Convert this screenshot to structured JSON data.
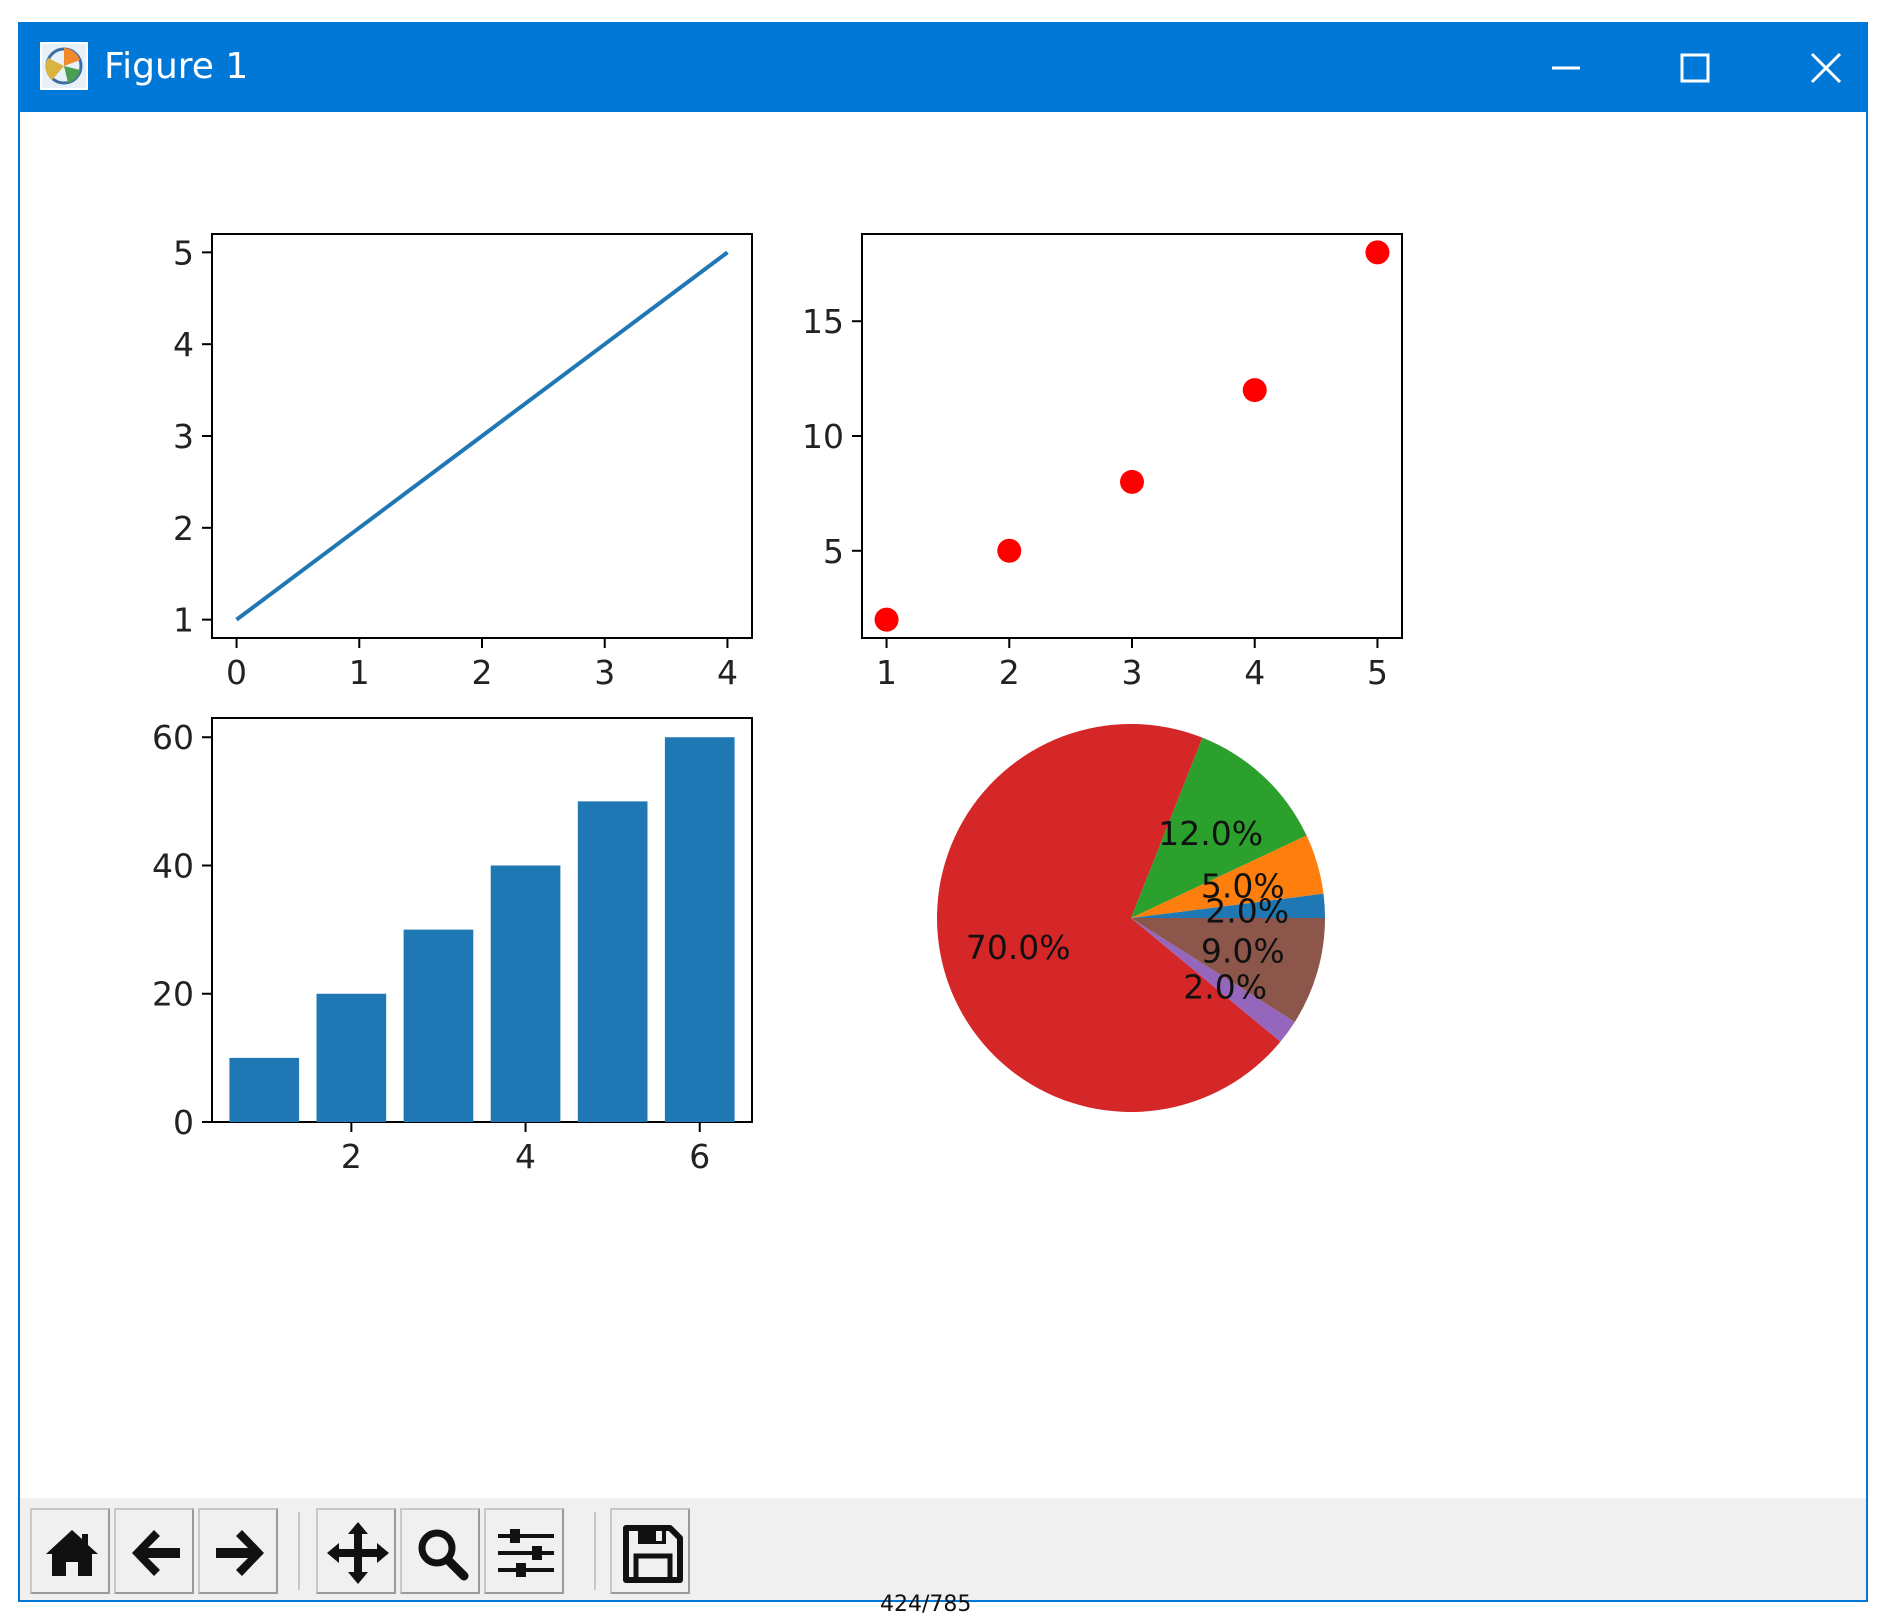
{
  "window": {
    "title": "Figure 1"
  },
  "titlebar_icons": {
    "app": "matplotlib-figure-icon",
    "minimize": "minimize-icon",
    "maximize": "maximize-icon",
    "close": "close-icon"
  },
  "toolbar": {
    "buttons": [
      {
        "name": "home",
        "icon": "home-icon"
      },
      {
        "name": "back",
        "icon": "arrow-left-icon"
      },
      {
        "name": "forward",
        "icon": "arrow-right-icon"
      },
      {
        "name": "pan",
        "icon": "move-arrows-icon"
      },
      {
        "name": "zoom",
        "icon": "magnifier-icon"
      },
      {
        "name": "configure-subplots",
        "icon": "sliders-icon"
      },
      {
        "name": "save",
        "icon": "floppy-disk-icon"
      }
    ]
  },
  "page_counter": "424/785",
  "colors": {
    "titlebar": "#0078d7",
    "line": "#1f77b4",
    "scatter": "#ff0000",
    "bar": "#1f77b4",
    "toolbar": "#f0f0f0"
  },
  "chart_data": [
    {
      "type": "line",
      "x": [
        0,
        1,
        2,
        3,
        4
      ],
      "y": [
        1,
        2,
        3,
        4,
        5
      ],
      "xlim": [
        -0.2,
        4.2
      ],
      "ylim": [
        0.8,
        5.2
      ],
      "xticks": [
        "0",
        "1",
        "2",
        "3",
        "4"
      ],
      "yticks": [
        "1",
        "2",
        "3",
        "4",
        "5"
      ],
      "color": "#1f77b4"
    },
    {
      "type": "scatter",
      "x": [
        1,
        2,
        3,
        4,
        5
      ],
      "y": [
        2,
        5,
        8,
        12,
        18
      ],
      "xlim": [
        0.8,
        5.2
      ],
      "ylim": [
        1.2,
        18.8
      ],
      "xticks": [
        "1",
        "2",
        "3",
        "4",
        "5"
      ],
      "yticks": [
        "5",
        "10",
        "15"
      ],
      "color": "#ff0000"
    },
    {
      "type": "bar",
      "x": [
        1,
        2,
        3,
        4,
        5,
        6
      ],
      "values": [
        10,
        20,
        30,
        40,
        50,
        60
      ],
      "xlim": [
        0.4,
        6.6
      ],
      "ylim": [
        0,
        63
      ],
      "xticks": [
        "2",
        "4",
        "6"
      ],
      "yticks": [
        "0",
        "20",
        "40",
        "60"
      ],
      "color": "#1f77b4"
    },
    {
      "type": "pie",
      "values": [
        2,
        5,
        12,
        70,
        2,
        9
      ],
      "labels": [
        "2.0%",
        "5.0%",
        "12.0%",
        "70.0%",
        "2.0%",
        "9.0%"
      ],
      "colors": [
        "#1f77b4",
        "#ff7f0e",
        "#2ca02c",
        "#d62728",
        "#9467bd",
        "#8c564b"
      ]
    }
  ]
}
